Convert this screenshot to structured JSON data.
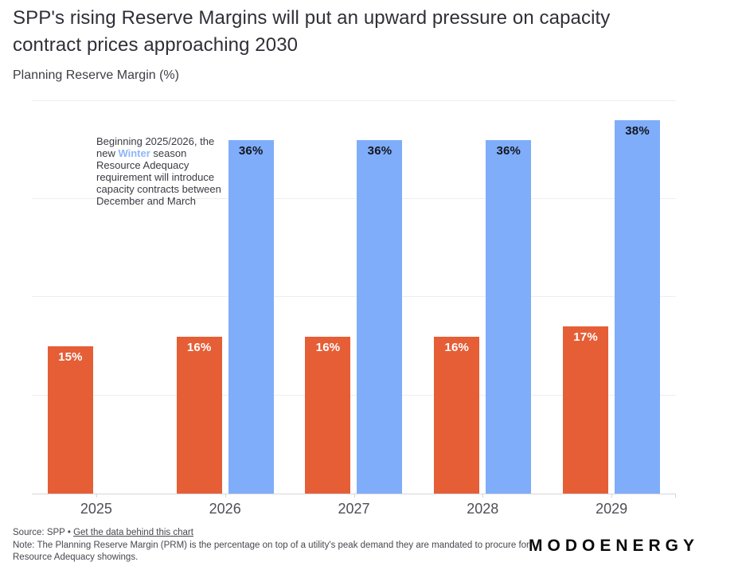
{
  "header": {
    "title": "SPP's rising Reserve Margins will put an upward pressure on capacity contract prices approaching 2030",
    "subtitle": "Planning Reserve Margin (%)"
  },
  "annotation": {
    "pre": "Beginning 2025/2026, the new ",
    "highlight": "Winter",
    "post": " season Resource Adequacy requirement will introduce capacity contracts between December and March",
    "highlight_color": "#8fb6f7"
  },
  "chart_data": {
    "type": "bar",
    "title": "Planning Reserve Margin (%)",
    "categories": [
      "2025",
      "2026",
      "2027",
      "2028",
      "2029"
    ],
    "series": [
      {
        "id": "summer",
        "color": "#e55e36",
        "label_color": "#ffffff",
        "values": [
          15,
          16,
          16,
          16,
          17
        ]
      },
      {
        "id": "winter",
        "color": "#7fadfa",
        "label_color": "#15151f",
        "values": [
          null,
          36,
          36,
          36,
          38
        ]
      }
    ],
    "value_suffix": "%",
    "ylim": [
      0,
      45
    ],
    "gridlines": [
      10,
      20,
      30,
      40
    ],
    "grid": "on",
    "legend": "none",
    "colors": {
      "grid": "#eeeef2",
      "axis": "#d7d7dc",
      "x_label": "#4e4e57"
    }
  },
  "footer": {
    "source_prefix": "Source: SPP • ",
    "link_text": "Get the data behind this chart",
    "note": "Note: The Planning Reserve Margin (PRM) is the percentage on top of a utility's peak demand they are mandated to procure for Resource Adequacy showings."
  },
  "logo": {
    "text": "MODOENERGY"
  }
}
